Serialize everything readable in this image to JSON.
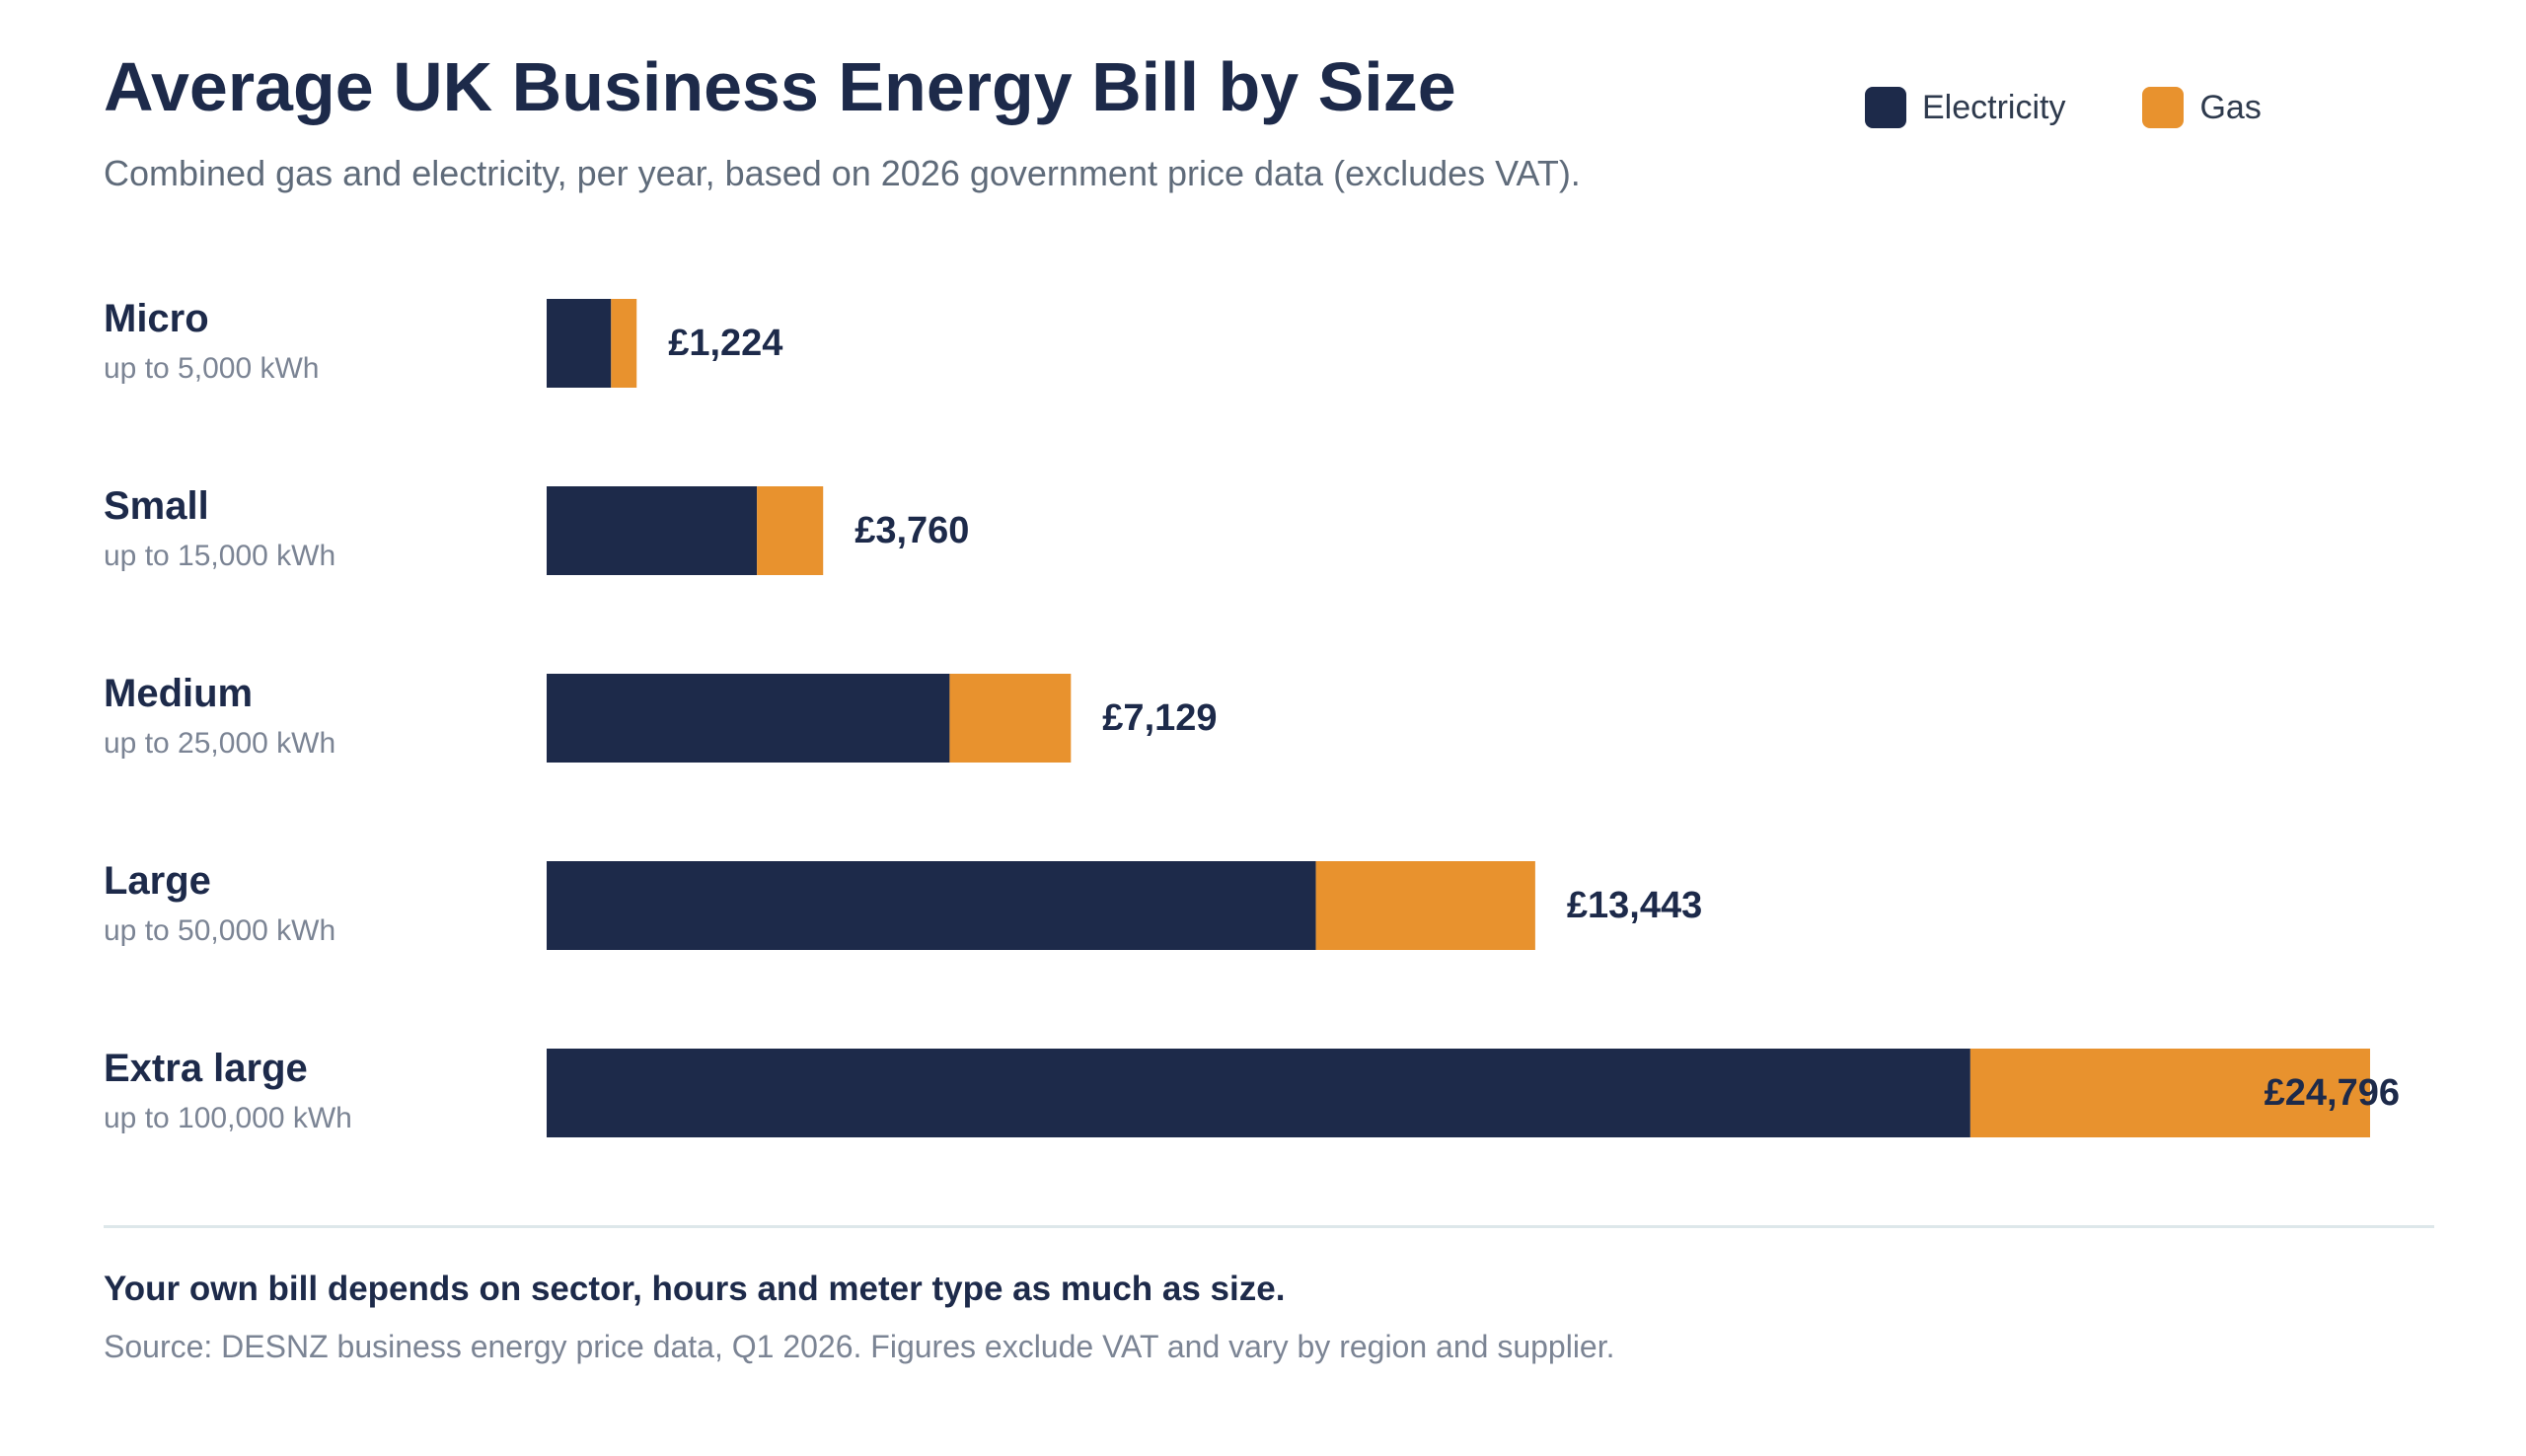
{
  "title": "Average UK Business Energy Bill by Size",
  "subtitle": "Combined gas and electricity, per year, based on 2026 government price data (excludes VAT).",
  "legend": [
    {
      "label": "Electricity",
      "color": "#1d2a4a"
    },
    {
      "label": "Gas",
      "color": "#e8922e"
    }
  ],
  "chart_data": {
    "type": "bar",
    "orientation": "horizontal",
    "stacked": true,
    "title": "Average UK Business Energy Bill by Size",
    "categories": [
      "Micro",
      "Small",
      "Medium",
      "Large",
      "Extra large"
    ],
    "category_notes": [
      "up to 5,000 kWh",
      "up to 15,000 kWh",
      "up to 25,000 kWh",
      "up to 50,000 kWh",
      "up to 100,000 kWh"
    ],
    "series": [
      {
        "name": "Electricity",
        "color": "#1d2a4a",
        "values": [
          876,
          2860,
          5480,
          10460,
          19360
        ]
      },
      {
        "name": "Gas",
        "color": "#e8922e",
        "values": [
          348,
          900,
          1649,
          2983,
          5436
        ]
      }
    ],
    "totals": [
      1224,
      3760,
      7129,
      13443,
      24796
    ],
    "total_labels": [
      "£1,224",
      "£3,760",
      "£7,129",
      "£13,443",
      "£24,796"
    ],
    "xlim": [
      0,
      24796
    ],
    "grid": false,
    "legend_position": "top-right"
  },
  "footnote": "Your own bill depends on sector, hours and meter type as much as size.",
  "source": "Source: DESNZ business energy price data, Q1 2026. Figures exclude VAT and vary by region and supplier."
}
